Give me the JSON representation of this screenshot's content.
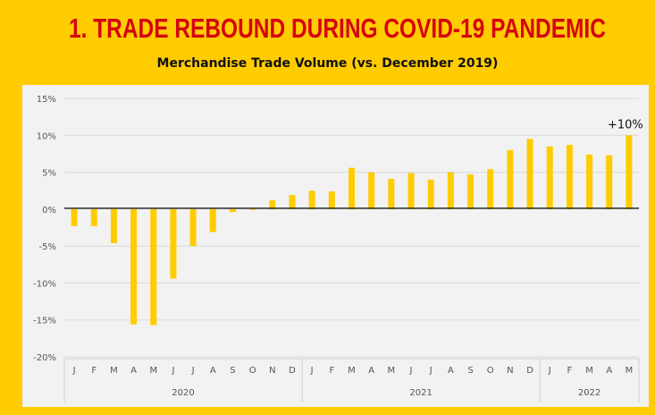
{
  "header": {
    "title": "1. TRADE REBOUND DURING COVID-19 PANDEMIC"
  },
  "chart_data": {
    "type": "bar",
    "title": "Merchandise Trade Volume (vs. December 2019)",
    "xlabel": "",
    "ylabel": "",
    "ylim": [
      -20,
      15
    ],
    "yticks": [
      15,
      10,
      5,
      0,
      -5,
      -10,
      -15,
      -20
    ],
    "ytick_labels": [
      "15%",
      "10%",
      "5%",
      "0%",
      "-5%",
      "-10%",
      "-15%",
      "-20%"
    ],
    "grid": true,
    "categories": [
      "J",
      "F",
      "M",
      "A",
      "M",
      "J",
      "J",
      "A",
      "S",
      "O",
      "N",
      "D",
      "J",
      "F",
      "M",
      "A",
      "M",
      "J",
      "J",
      "A",
      "S",
      "O",
      "N",
      "D",
      "J",
      "F",
      "M",
      "A",
      "M"
    ],
    "years": [
      {
        "label": "2020",
        "months": 12
      },
      {
        "label": "2021",
        "months": 12
      },
      {
        "label": "2022",
        "months": 5
      }
    ],
    "values": [
      -2.3,
      -2.3,
      -4.6,
      -15.6,
      -15.7,
      -9.4,
      -5.0,
      -3.1,
      -0.4,
      -0.1,
      1.2,
      1.9,
      2.5,
      2.4,
      5.6,
      5.0,
      4.1,
      4.9,
      4.0,
      5.0,
      4.7,
      5.4,
      8.0,
      9.5,
      8.5,
      8.7,
      7.4,
      7.3,
      10.0
    ],
    "annotation": "+10%",
    "bar_color": "#FFCC00"
  }
}
